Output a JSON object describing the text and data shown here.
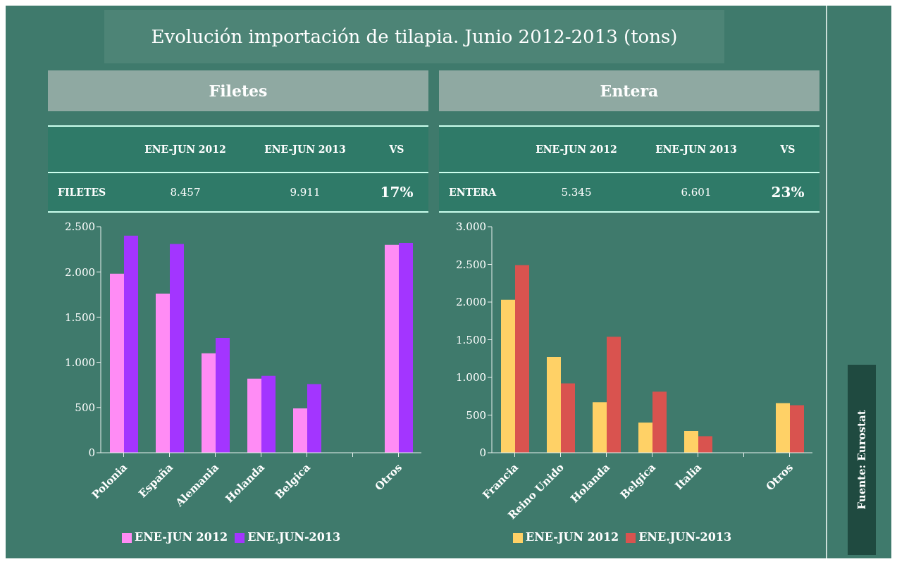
{
  "chart_data": [
    {
      "type": "other",
      "title": "Evolución importación de tilapia. Junio 2012-2013 (tons)",
      "annotations": [
        "Fuente: Eurostat"
      ]
    },
    {
      "type": "bar",
      "title": "Filetes",
      "annotations": [
        "ENE-JUN 2012",
        "ENE-JUN 2013",
        "VS",
        "FILETES",
        "8.457",
        "9.911",
        "17%"
      ],
      "categories": [
        "Polonia",
        "España",
        "Alemania",
        "Holanda",
        "Belgica",
        null,
        "Otros"
      ],
      "series": [
        {
          "name": "ENE-JUN 2012",
          "color": "#ff8cf5",
          "values": [
            1980,
            1760,
            1100,
            820,
            490,
            null,
            2300
          ]
        },
        {
          "name": "ENE.JUN-2013",
          "color": "#a335ff",
          "values": [
            2400,
            2310,
            1270,
            850,
            760,
            null,
            2320
          ]
        }
      ],
      "ylim": [
        0,
        2500
      ],
      "yticks": [
        {
          "value": 0,
          "label": "0"
        },
        {
          "value": 500,
          "label": "500"
        },
        {
          "value": 1000,
          "label": "1.000"
        },
        {
          "value": 1500,
          "label": "1.500"
        },
        {
          "value": 2000,
          "label": "2.000"
        },
        {
          "value": 2500,
          "label": "2.500"
        }
      ],
      "grid": false,
      "legend": "bottom"
    },
    {
      "type": "bar",
      "title": "Entera",
      "annotations": [
        "ENE-JUN 2012",
        "ENE-JUN 2013",
        "VS",
        "ENTERA",
        "5.345",
        "6.601",
        "23%"
      ],
      "categories": [
        "Francia",
        "Reino Unido",
        "Holanda",
        "Belgica",
        "Italia",
        null,
        "Otros"
      ],
      "series": [
        {
          "name": "ENE-JUN 2012",
          "color": "#ffd166",
          "values": [
            2030,
            1270,
            670,
            400,
            290,
            null,
            660
          ]
        },
        {
          "name": "ENE.JUN-2013",
          "color": "#d9534f",
          "values": [
            2490,
            920,
            1540,
            810,
            220,
            null,
            630
          ]
        }
      ],
      "ylim": [
        0,
        3000
      ],
      "yticks": [
        {
          "value": 0,
          "label": "0"
        },
        {
          "value": 500,
          "label": "500"
        },
        {
          "value": 1000,
          "label": "1.000"
        },
        {
          "value": 1500,
          "label": "1.500"
        },
        {
          "value": 2000,
          "label": "2.000"
        },
        {
          "value": 2500,
          "label": "2.500"
        },
        {
          "value": 3000,
          "label": "3.000"
        }
      ],
      "grid": false,
      "legend": "bottom"
    }
  ]
}
